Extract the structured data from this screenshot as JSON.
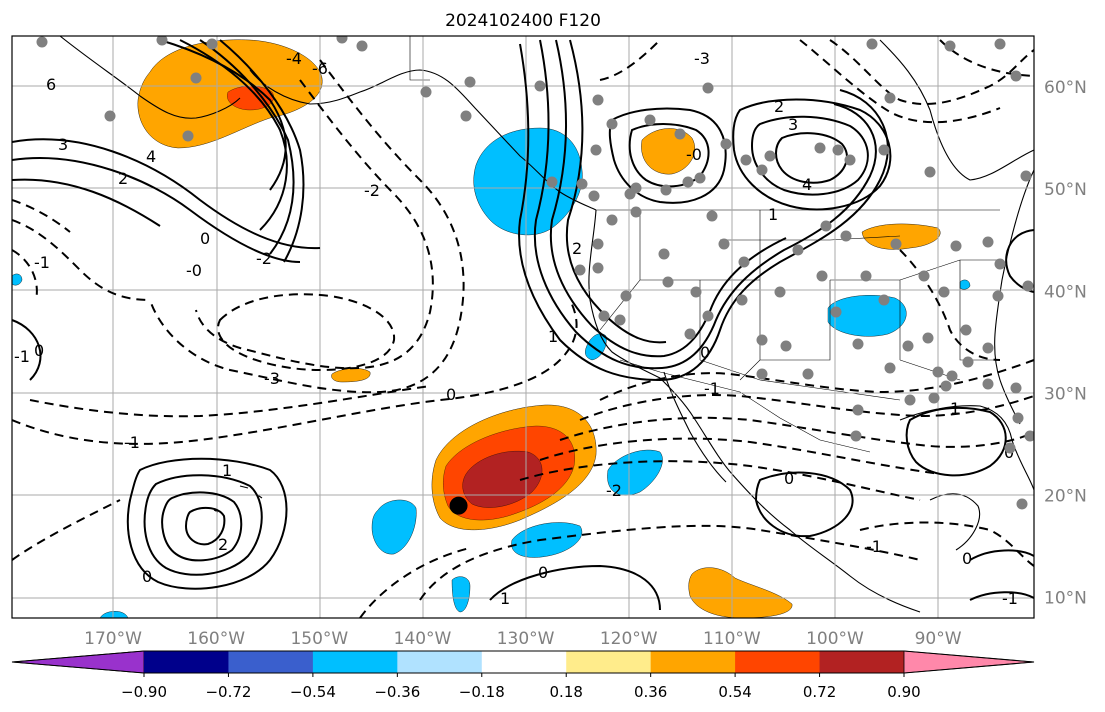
{
  "title": "2024102400 F120",
  "map": {
    "projection": "equirectangular",
    "lon_ticks": [
      "170°W",
      "160°W",
      "150°W",
      "140°W",
      "130°W",
      "120°W",
      "110°W",
      "100°W",
      "90°W"
    ],
    "lat_ticks": [
      "60°N",
      "50°N",
      "40°N",
      "30°N",
      "20°N",
      "10°N"
    ],
    "gridlines": true,
    "marker": {
      "lon": -136.5,
      "lat": 19.0,
      "color": "#000000"
    },
    "station_dot_color": "#808080"
  },
  "colorbar": {
    "levels": [
      "−0.90",
      "−0.72",
      "−0.54",
      "−0.36",
      "−0.18",
      "0.18",
      "0.36",
      "0.54",
      "0.72",
      "0.90"
    ],
    "colors": [
      "#9932cc",
      "#00008b",
      "#3a5fcd",
      "#00bfff",
      "#b0e2ff",
      "#ffffff",
      "#ffec8b",
      "#ffa500",
      "#ff4500",
      "#b22222",
      "#ff88aa"
    ],
    "extend": "both"
  },
  "contour_labels": [
    "6",
    "3",
    "4",
    "2",
    "0",
    "-0",
    "-2",
    "-3",
    "-1",
    "1",
    "-4",
    "-6",
    "0",
    "-0",
    "2",
    "3",
    "4",
    "-2",
    "-1",
    "1",
    "-3",
    "0",
    "-1",
    "2",
    "1",
    "0",
    "-1",
    "-2",
    "0",
    "1",
    "0",
    "-1",
    "0",
    "-1",
    "0",
    "1",
    "2",
    "0"
  ]
}
